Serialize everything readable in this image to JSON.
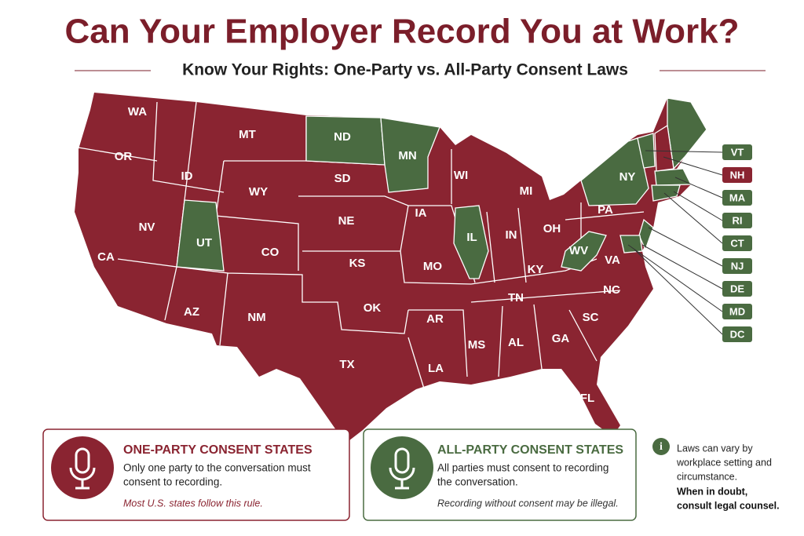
{
  "header": {
    "title": "Can Your Employer Record You at Work?",
    "subtitle": "Know Your Rights: One-Party vs. All-Party Consent Laws"
  },
  "map": {
    "states": [
      {
        "label": "WA",
        "color": "#8a2431"
      },
      {
        "label": "OR",
        "color": "#8a2431"
      },
      {
        "label": "MT",
        "color": "#8a2431"
      },
      {
        "label": "ID",
        "color": "#8a2431"
      },
      {
        "label": "ND",
        "color": "#4a6b41"
      },
      {
        "label": "MN",
        "color": "#4a6b41"
      },
      {
        "label": "SD",
        "color": "#8a2431"
      },
      {
        "label": "WY",
        "color": "#8a2431"
      },
      {
        "label": "WI",
        "color": "#8a2431"
      },
      {
        "label": "NV",
        "color": "#8a2431"
      },
      {
        "label": "UT",
        "color": "#4a6b41"
      },
      {
        "label": "NE",
        "color": "#8a2431"
      },
      {
        "label": "IA",
        "color": "#8a2431"
      },
      {
        "label": "MI",
        "color": "#8a2431"
      },
      {
        "label": "NY",
        "color": "#4a6b41"
      },
      {
        "label": "PA",
        "color": "#8a2431"
      },
      {
        "label": "IL",
        "color": "#4a6b41"
      },
      {
        "label": "IN",
        "color": "#8a2431"
      },
      {
        "label": "OH",
        "color": "#8a2431"
      },
      {
        "label": "CA",
        "color": "#8a2431"
      },
      {
        "label": "CO",
        "color": "#8a2431"
      },
      {
        "label": "KS",
        "color": "#8a2431"
      },
      {
        "label": "MO",
        "color": "#8a2431"
      },
      {
        "label": "WV",
        "color": "#4a6b41"
      },
      {
        "label": "VA",
        "color": "#8a2431"
      },
      {
        "label": "KY",
        "color": "#8a2431"
      },
      {
        "label": "AZ",
        "color": "#8a2431"
      },
      {
        "label": "NM",
        "color": "#8a2431"
      },
      {
        "label": "OK",
        "color": "#8a2431"
      },
      {
        "label": "AR",
        "color": "#8a2431"
      },
      {
        "label": "TN",
        "color": "#8a2431"
      },
      {
        "label": "NC",
        "color": "#8a2431"
      },
      {
        "label": "SC",
        "color": "#8a2431"
      },
      {
        "label": "MS",
        "color": "#8a2431"
      },
      {
        "label": "AL",
        "color": "#8a2431"
      },
      {
        "label": "GA",
        "color": "#8a2431"
      },
      {
        "label": "TX",
        "color": "#8a2431"
      },
      {
        "label": "LA",
        "color": "#8a2431"
      },
      {
        "label": "FL",
        "color": "#8a2431"
      }
    ],
    "callouts": [
      {
        "label": "VT",
        "color": "#4a6b41"
      },
      {
        "label": "NH",
        "color": "#8a2431"
      },
      {
        "label": "MA",
        "color": "#4a6b41"
      },
      {
        "label": "RI",
        "color": "#4a6b41"
      },
      {
        "label": "CT",
        "color": "#4a6b41"
      },
      {
        "label": "NJ",
        "color": "#4a6b41"
      },
      {
        "label": "DE",
        "color": "#4a6b41"
      },
      {
        "label": "MD",
        "color": "#4a6b41"
      },
      {
        "label": "DC",
        "color": "#4a6b41"
      }
    ]
  },
  "legend": [
    {
      "title": "ONE-PARTY CONSENT STATES",
      "lines": [
        "Only one party to the conversation must",
        "consent to recording."
      ],
      "note": "Most U.S. states follow this rule.",
      "color": "#8a2431"
    },
    {
      "title": "ALL-PARTY CONSENT STATES",
      "lines": [
        "All parties must consent to recording",
        "the conversation."
      ],
      "note": "Recording without consent may be illegal.",
      "color": "#4a6b41"
    }
  ],
  "info": {
    "lines": [
      "Laws can vary by",
      "workplace setting and",
      "circumstance."
    ],
    "emphasis": [
      "When in doubt,",
      "consult legal counsel."
    ]
  }
}
